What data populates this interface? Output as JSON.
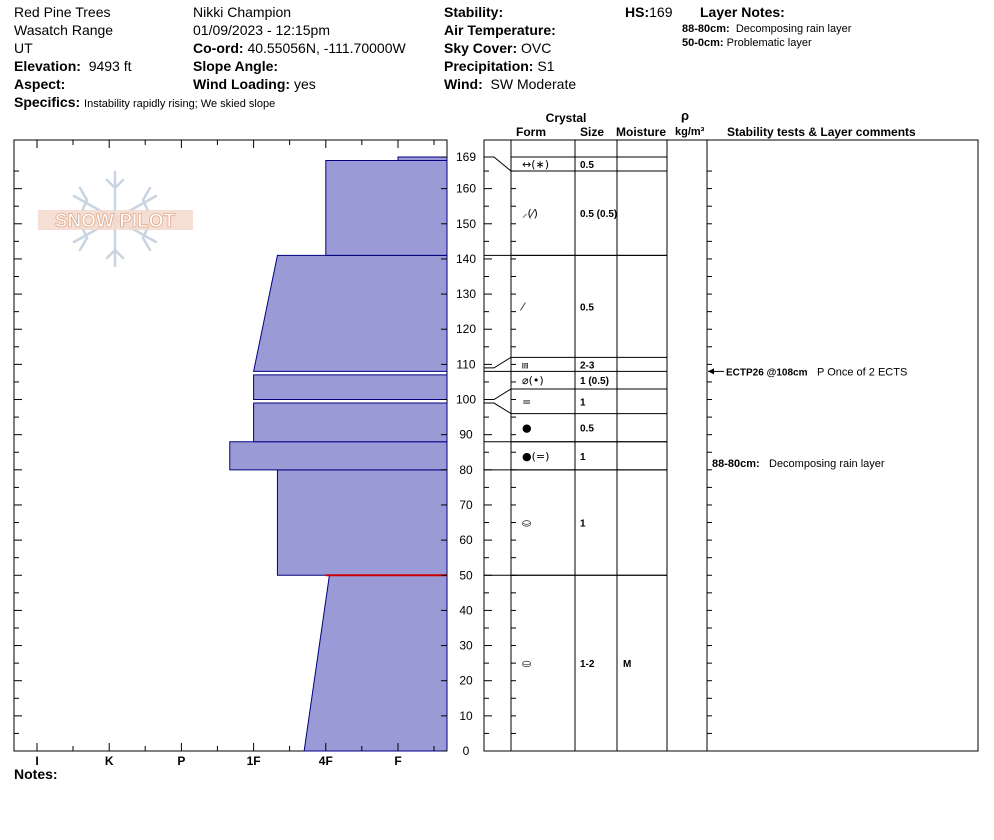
{
  "header": {
    "location": "Red Pine Trees",
    "range": "Wasatch Range",
    "state": "UT",
    "elevation_label": "Elevation:",
    "elevation_value": "9493 ft",
    "aspect_label": "Aspect:",
    "aspect_value": "",
    "specifics_label": "Specifics:",
    "specifics_value": "Instability rapidly rising;  We skied slope",
    "observer": "Nikki Champion",
    "datetime": "01/09/2023 - 12:15pm",
    "coord_label": "Co-ord:",
    "coord_value": "40.55056N, -111.70000W",
    "slope_label": "Slope Angle:",
    "slope_value": "",
    "wind_loading_label": "Wind Loading:",
    "wind_loading_value": "yes",
    "stability_label": "Stability:",
    "stability_value": "",
    "air_temp_label": "Air Temperature:",
    "air_temp_value": "",
    "sky_label": "Sky Cover:",
    "sky_value": "OVC",
    "precip_label": "Precipitation:",
    "precip_value": "S1",
    "wind_label": "Wind:",
    "wind_value": "SW Moderate",
    "hs_label": "HS:",
    "hs_value": "169",
    "layer_notes_label": "Layer Notes:",
    "layer_notes": [
      {
        "range": "88-80cm:",
        "text": "Decomposing rain layer"
      },
      {
        "range": "50-0cm:",
        "text": "Problematic layer"
      }
    ],
    "notes_label": "Notes:"
  },
  "logo": {
    "text": "SNOW PILOT"
  },
  "columns": {
    "crystal": "Crystal",
    "form": "Form",
    "size": "Size",
    "moisture": "Moisture",
    "rho": "ρ",
    "density_unit": "kg/m³",
    "stability": "Stability tests & Layer comments"
  },
  "chart_data": {
    "type": "bar",
    "title": "",
    "xlabel": "",
    "ylabel": "",
    "x_categories": [
      "I",
      "K",
      "P",
      "1F",
      "4F",
      "F"
    ],
    "x_axis_values": [
      6,
      5,
      4,
      3,
      2,
      1
    ],
    "ylim": [
      0,
      169
    ],
    "yticks": [
      0,
      10,
      20,
      30,
      40,
      50,
      60,
      70,
      80,
      90,
      100,
      110,
      120,
      130,
      140,
      150,
      160,
      169
    ],
    "hardness_layers": [
      {
        "bottom": 0,
        "top": 50,
        "hardness_bottom": 2.3,
        "hardness_top": 1.95
      },
      {
        "bottom": 50,
        "top": 80,
        "hardness": 2.67
      },
      {
        "bottom": 80,
        "top": 88,
        "hardness": 3.33
      },
      {
        "bottom": 88,
        "top": 99,
        "hardness": 3
      },
      {
        "bottom": 100,
        "top": 107,
        "hardness": 3
      },
      {
        "bottom": 108,
        "top": 141,
        "hardness_bottom": 3,
        "hardness_top": 2.67
      },
      {
        "bottom": 141,
        "top": 168,
        "hardness": 2
      },
      {
        "bottom": 168,
        "top": 169,
        "hardness": 1
      }
    ],
    "critical_layer_depth": 50,
    "strat_layers": [
      {
        "bottom": 165,
        "top": 169,
        "form": "↔(∗)",
        "size": "0.5",
        "moisture": ""
      },
      {
        "bottom": 141,
        "top": 165,
        "form": "⸝(⁄)",
        "size": "0.5 (0.5)",
        "moisture": ""
      },
      {
        "bottom": 112,
        "top": 141,
        "form": "⁄",
        "size": "0.5",
        "moisture": ""
      },
      {
        "bottom": 108,
        "top": 112,
        "form": "⩎",
        "size": "2-3",
        "moisture": ""
      },
      {
        "bottom": 103,
        "top": 108,
        "form": "⌀(•)",
        "size": "1 (0.5)",
        "moisture": ""
      },
      {
        "bottom": 96,
        "top": 103,
        "form": "=",
        "size": "1",
        "moisture": ""
      },
      {
        "bottom": 88,
        "top": 96,
        "form": "●",
        "size": "0.5",
        "moisture": ""
      },
      {
        "bottom": 80,
        "top": 88,
        "form": "●(=)",
        "size": "1",
        "moisture": ""
      },
      {
        "bottom": 50,
        "top": 80,
        "form": "⛀",
        "size": "1",
        "moisture": ""
      },
      {
        "bottom": 0,
        "top": 50,
        "form": "⛀",
        "size": "1-2",
        "moisture": "M"
      }
    ],
    "boundary_links": [
      {
        "from": 169,
        "to": 165
      },
      {
        "from": 109,
        "to": 112
      },
      {
        "from": 108,
        "to": 108
      },
      {
        "from": 100,
        "to": 103
      },
      {
        "from": 99,
        "to": 96
      }
    ],
    "stability_tests": [
      {
        "depth": 108,
        "label": "ECTP26 @108cm",
        "comment": "P Once of 2 ECTS"
      }
    ],
    "layer_comments": [
      {
        "depth": 82,
        "range": "88-80cm:",
        "text": "Decomposing rain layer"
      }
    ],
    "colors": {
      "fill": "#9a9ad6",
      "outline": "#000080",
      "critical": "#cc0000"
    }
  }
}
